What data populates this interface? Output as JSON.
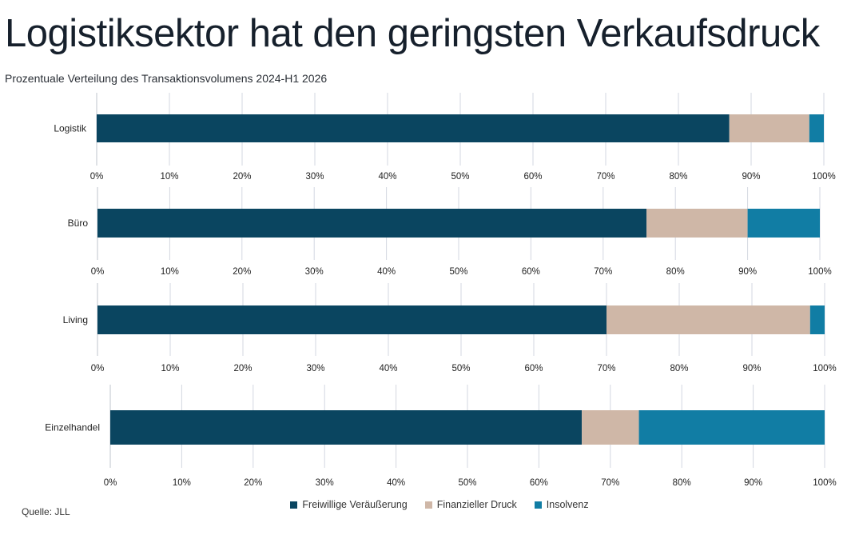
{
  "title": "Logistiksektor hat den geringsten Verkaufsdruck",
  "subtitle": "Prozentuale Verteilung des Transaktionsvolumens 2024-H1 2026",
  "source": "Quelle: JLL",
  "colors": {
    "freiwillig": "#0a4560",
    "finanziell": "#cfb7a7",
    "insolvenz": "#117da4",
    "grid": "#d3d7e0",
    "axis": "#bfc4cc"
  },
  "chart_data": {
    "type": "bar",
    "orientation": "horizontal",
    "stacked": true,
    "xlim": [
      0,
      100
    ],
    "ticks": [
      "0%",
      "10%",
      "20%",
      "30%",
      "40%",
      "50%",
      "60%",
      "70%",
      "80%",
      "90%",
      "100%"
    ],
    "legend_position": "bottom",
    "grid": true,
    "series_names": [
      "Freiwillige Veräußerung",
      "Finanzieller Druck",
      "Insolvenz"
    ],
    "panels": [
      {
        "category": "Logistik",
        "values": [
          87,
          11,
          2
        ]
      },
      {
        "category": "Büro",
        "values": [
          76,
          14,
          10
        ]
      },
      {
        "category": "Living",
        "values": [
          70,
          28,
          2
        ]
      },
      {
        "category": "Einzelhandel",
        "values": [
          66,
          8,
          26
        ]
      }
    ]
  }
}
